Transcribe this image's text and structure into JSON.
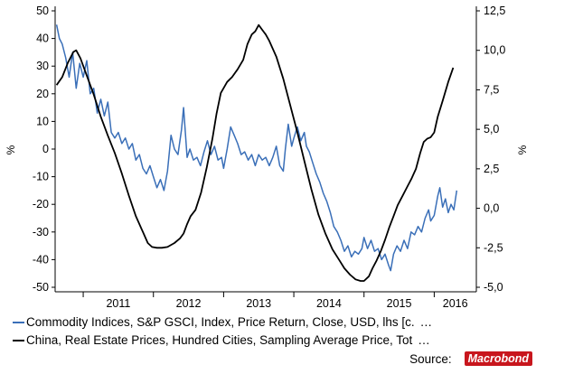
{
  "chart_data": {
    "type": "line",
    "left_axis": {
      "label": "%",
      "range": [
        -50,
        50
      ],
      "ticks": [
        "50",
        "40",
        "30",
        "20",
        "10",
        "0",
        "-10",
        "-20",
        "-30",
        "-40",
        "-50"
      ]
    },
    "right_axis": {
      "label": "%",
      "range": [
        -5,
        12.5
      ],
      "ticks": [
        "12,5",
        "10,0",
        "7,5",
        "5,0",
        "2,5",
        "0,0",
        "-2,5",
        "-5,0"
      ]
    },
    "x_axis": {
      "range": [
        2010.6,
        2016.6
      ],
      "year_labels": [
        "2011",
        "2012",
        "2013",
        "2014",
        "2015",
        "2016"
      ]
    },
    "grid": false,
    "legend_placement": "bottom",
    "series": [
      {
        "name": "Commodity Indices, S&P GSCI, Index, Price Return, Close, USD, lhs [c.",
        "axis": "left",
        "color": "#3a6fb8",
        "points": [
          [
            2010.62,
            45
          ],
          [
            2010.66,
            40
          ],
          [
            2010.7,
            38
          ],
          [
            2010.75,
            33
          ],
          [
            2010.8,
            26
          ],
          [
            2010.85,
            35
          ],
          [
            2010.9,
            22
          ],
          [
            2010.95,
            31
          ],
          [
            2011.0,
            26
          ],
          [
            2011.05,
            32
          ],
          [
            2011.1,
            20
          ],
          [
            2011.15,
            22
          ],
          [
            2011.2,
            13
          ],
          [
            2011.25,
            18
          ],
          [
            2011.3,
            12
          ],
          [
            2011.35,
            17
          ],
          [
            2011.4,
            6
          ],
          [
            2011.45,
            4
          ],
          [
            2011.5,
            6
          ],
          [
            2011.55,
            2
          ],
          [
            2011.6,
            4
          ],
          [
            2011.65,
            0
          ],
          [
            2011.7,
            2
          ],
          [
            2011.75,
            -4
          ],
          [
            2011.8,
            -2
          ],
          [
            2011.85,
            -7
          ],
          [
            2011.9,
            -9
          ],
          [
            2011.95,
            -6
          ],
          [
            2012.0,
            -10
          ],
          [
            2012.05,
            -14
          ],
          [
            2012.1,
            -11
          ],
          [
            2012.15,
            -15
          ],
          [
            2012.2,
            -8
          ],
          [
            2012.25,
            5
          ],
          [
            2012.3,
            0
          ],
          [
            2012.35,
            -2
          ],
          [
            2012.4,
            7
          ],
          [
            2012.43,
            15
          ],
          [
            2012.48,
            -3
          ],
          [
            2012.52,
            0
          ],
          [
            2012.57,
            -4
          ],
          [
            2012.62,
            -3
          ],
          [
            2012.67,
            -6
          ],
          [
            2012.72,
            -1
          ],
          [
            2012.77,
            3
          ],
          [
            2012.82,
            -2
          ],
          [
            2012.87,
            1
          ],
          [
            2012.92,
            -4
          ],
          [
            2012.97,
            -3
          ],
          [
            2013.0,
            -7
          ],
          [
            2013.05,
            0
          ],
          [
            2013.1,
            8
          ],
          [
            2013.15,
            5
          ],
          [
            2013.2,
            2
          ],
          [
            2013.25,
            -2
          ],
          [
            2013.3,
            -1
          ],
          [
            2013.35,
            -4
          ],
          [
            2013.4,
            -2
          ],
          [
            2013.45,
            -6
          ],
          [
            2013.5,
            -2
          ],
          [
            2013.55,
            -4
          ],
          [
            2013.6,
            -3
          ],
          [
            2013.65,
            -6
          ],
          [
            2013.7,
            -3
          ],
          [
            2013.75,
            1
          ],
          [
            2013.8,
            -6
          ],
          [
            2013.85,
            -8
          ],
          [
            2013.88,
            0
          ],
          [
            2013.92,
            9
          ],
          [
            2013.97,
            1
          ],
          [
            2014.0,
            4
          ],
          [
            2014.05,
            8
          ],
          [
            2014.1,
            3
          ],
          [
            2014.15,
            6
          ],
          [
            2014.18,
            1
          ],
          [
            2014.22,
            -1
          ],
          [
            2014.27,
            -5
          ],
          [
            2014.32,
            -9
          ],
          [
            2014.37,
            -12
          ],
          [
            2014.42,
            -16
          ],
          [
            2014.47,
            -19
          ],
          [
            2014.52,
            -23
          ],
          [
            2014.57,
            -28
          ],
          [
            2014.62,
            -30
          ],
          [
            2014.67,
            -33
          ],
          [
            2014.72,
            -37
          ],
          [
            2014.77,
            -35
          ],
          [
            2014.82,
            -39
          ],
          [
            2014.87,
            -37
          ],
          [
            2014.92,
            -38
          ],
          [
            2014.97,
            -36
          ],
          [
            2015.0,
            -32
          ],
          [
            2015.05,
            -36
          ],
          [
            2015.1,
            -33
          ],
          [
            2015.15,
            -37
          ],
          [
            2015.2,
            -36
          ],
          [
            2015.25,
            -40
          ],
          [
            2015.3,
            -38
          ],
          [
            2015.35,
            -42
          ],
          [
            2015.38,
            -44
          ],
          [
            2015.42,
            -38
          ],
          [
            2015.47,
            -35
          ],
          [
            2015.52,
            -37
          ],
          [
            2015.57,
            -33
          ],
          [
            2015.62,
            -36
          ],
          [
            2015.67,
            -30
          ],
          [
            2015.72,
            -31
          ],
          [
            2015.77,
            -28
          ],
          [
            2015.82,
            -30
          ],
          [
            2015.87,
            -25
          ],
          [
            2015.92,
            -22
          ],
          [
            2015.95,
            -26
          ],
          [
            2016.0,
            -24
          ],
          [
            2016.05,
            -17
          ],
          [
            2016.08,
            -14
          ],
          [
            2016.12,
            -21
          ],
          [
            2016.16,
            -18
          ],
          [
            2016.2,
            -23
          ],
          [
            2016.24,
            -20
          ],
          [
            2016.28,
            -22
          ],
          [
            2016.32,
            -15
          ]
        ]
      },
      {
        "name": "China, Real Estate Prices, Hundred Cities, Sampling Average Price, Tot",
        "axis": "right",
        "color": "#000000",
        "points": [
          [
            2010.62,
            7.8
          ],
          [
            2010.7,
            8.3
          ],
          [
            2010.78,
            9.2
          ],
          [
            2010.86,
            9.9
          ],
          [
            2010.9,
            10.0
          ],
          [
            2010.96,
            9.5
          ],
          [
            2011.05,
            8.4
          ],
          [
            2011.15,
            7.2
          ],
          [
            2011.25,
            5.8
          ],
          [
            2011.35,
            4.6
          ],
          [
            2011.45,
            3.5
          ],
          [
            2011.55,
            2.2
          ],
          [
            2011.65,
            0.8
          ],
          [
            2011.75,
            -0.5
          ],
          [
            2011.85,
            -1.5
          ],
          [
            2011.92,
            -2.2
          ],
          [
            2011.98,
            -2.45
          ],
          [
            2012.05,
            -2.5
          ],
          [
            2012.12,
            -2.5
          ],
          [
            2012.2,
            -2.45
          ],
          [
            2012.3,
            -2.2
          ],
          [
            2012.38,
            -1.9
          ],
          [
            2012.43,
            -1.6
          ],
          [
            2012.48,
            -1.0
          ],
          [
            2012.53,
            -0.5
          ],
          [
            2012.6,
            -0.1
          ],
          [
            2012.68,
            1.0
          ],
          [
            2012.76,
            2.6
          ],
          [
            2012.84,
            4.4
          ],
          [
            2012.9,
            6.0
          ],
          [
            2012.96,
            7.3
          ],
          [
            2013.05,
            8.0
          ],
          [
            2013.12,
            8.3
          ],
          [
            2013.2,
            8.8
          ],
          [
            2013.28,
            9.4
          ],
          [
            2013.34,
            10.4
          ],
          [
            2013.4,
            11.0
          ],
          [
            2013.45,
            11.2
          ],
          [
            2013.5,
            11.6
          ],
          [
            2013.55,
            11.3
          ],
          [
            2013.6,
            11.0
          ],
          [
            2013.65,
            10.6
          ],
          [
            2013.75,
            9.6
          ],
          [
            2013.85,
            8.2
          ],
          [
            2013.95,
            6.5
          ],
          [
            2014.05,
            4.8
          ],
          [
            2014.15,
            3.0
          ],
          [
            2014.25,
            1.2
          ],
          [
            2014.35,
            -0.4
          ],
          [
            2014.45,
            -1.6
          ],
          [
            2014.55,
            -2.6
          ],
          [
            2014.65,
            -3.3
          ],
          [
            2014.72,
            -3.8
          ],
          [
            2014.8,
            -4.2
          ],
          [
            2014.88,
            -4.5
          ],
          [
            2014.95,
            -4.6
          ],
          [
            2015.0,
            -4.6
          ],
          [
            2015.07,
            -4.3
          ],
          [
            2015.12,
            -3.8
          ],
          [
            2015.18,
            -3.3
          ],
          [
            2015.24,
            -2.7
          ],
          [
            2015.3,
            -2.0
          ],
          [
            2015.36,
            -1.2
          ],
          [
            2015.42,
            -0.5
          ],
          [
            2015.48,
            0.2
          ],
          [
            2015.55,
            0.8
          ],
          [
            2015.62,
            1.4
          ],
          [
            2015.68,
            1.9
          ],
          [
            2015.74,
            2.5
          ],
          [
            2015.8,
            3.5
          ],
          [
            2015.85,
            4.2
          ],
          [
            2015.9,
            4.4
          ],
          [
            2015.95,
            4.5
          ],
          [
            2016.0,
            4.8
          ],
          [
            2016.05,
            5.8
          ],
          [
            2016.12,
            6.8
          ],
          [
            2016.2,
            8.0
          ],
          [
            2016.27,
            8.9
          ]
        ]
      }
    ]
  },
  "legend": {
    "items": [
      {
        "label": "Commodity Indices, S&P GSCI, Index, Price Return, Close, USD, lhs [c.",
        "color": "#3a6fb8",
        "more": "…"
      },
      {
        "label": "China, Real Estate Prices, Hundred Cities, Sampling Average Price, Tot",
        "color": "#000000",
        "more": "…"
      }
    ]
  },
  "source": {
    "label": "Source:",
    "logo_text": "Macrobond"
  }
}
